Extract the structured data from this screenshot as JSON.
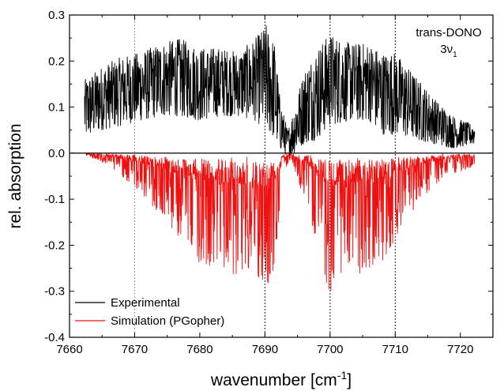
{
  "chart_data": {
    "type": "line",
    "xlabel": "wavenumber [cm",
    "xlabel_sup": "-1",
    "xlabel_end": "]",
    "ylabel": "rel. absorption",
    "xlim": [
      7660,
      7725
    ],
    "ylim": [
      -0.4,
      0.3
    ],
    "xticks": [
      7660,
      7670,
      7680,
      7690,
      7700,
      7710,
      7720
    ],
    "yticks": [
      -0.4,
      -0.3,
      -0.2,
      -0.1,
      0.0,
      0.1,
      0.2,
      0.3
    ],
    "ytick_labels": [
      "-0.4",
      "-0.3",
      "-0.2",
      "-0.1",
      "0.0",
      "0.1",
      "0.2",
      "0.3"
    ],
    "reference_lines_x": [
      7670,
      7690,
      7700,
      7710
    ],
    "zero_line": 0.0,
    "annotation": {
      "line1": "trans-DONO",
      "line2_main": "3ν",
      "line2_sub": "1"
    },
    "legend_position": "bottom-left",
    "series": [
      {
        "name": "Experimental",
        "color": "#000000",
        "x_range": [
          7662.3,
          7722.2
        ],
        "envelope": [
          [
            7662.3,
            0.03,
            0.16
          ],
          [
            7665,
            0.05,
            0.19
          ],
          [
            7668,
            0.06,
            0.21
          ],
          [
            7671,
            0.07,
            0.22
          ],
          [
            7674,
            0.08,
            0.24
          ],
          [
            7677,
            0.08,
            0.25
          ],
          [
            7680,
            0.07,
            0.23
          ],
          [
            7683,
            0.08,
            0.23
          ],
          [
            7686,
            0.08,
            0.22
          ],
          [
            7688.5,
            0.07,
            0.25
          ],
          [
            7690.2,
            0.05,
            0.28
          ],
          [
            7691.5,
            0.03,
            0.24
          ],
          [
            7692.3,
            0.01,
            0.12
          ],
          [
            7693.5,
            -0.01,
            0.05
          ],
          [
            7694.5,
            0.0,
            0.1
          ],
          [
            7696,
            0.02,
            0.18
          ],
          [
            7698,
            0.03,
            0.23
          ],
          [
            7700,
            0.06,
            0.26
          ],
          [
            7703,
            0.07,
            0.24
          ],
          [
            7706,
            0.07,
            0.24
          ],
          [
            7708,
            0.04,
            0.22
          ],
          [
            7710,
            0.04,
            0.22
          ],
          [
            7713,
            0.03,
            0.17
          ],
          [
            7716,
            0.02,
            0.12
          ],
          [
            7719,
            0.01,
            0.08
          ],
          [
            7722.2,
            0.02,
            0.06
          ]
        ]
      },
      {
        "name": "Simulation (PGopher)",
        "color": "#ee1111",
        "x_range": [
          7662.5,
          7722.2
        ],
        "envelope": [
          [
            7662.5,
            -0.005,
            0.0
          ],
          [
            7665,
            -0.02,
            0.0
          ],
          [
            7668,
            -0.05,
            0.0
          ],
          [
            7671,
            -0.09,
            0.0
          ],
          [
            7674,
            -0.14,
            0.0
          ],
          [
            7677,
            -0.19,
            0.0
          ],
          [
            7680,
            -0.24,
            0.0
          ],
          [
            7683,
            -0.25,
            0.0
          ],
          [
            7686,
            -0.27,
            0.0
          ],
          [
            7688.5,
            -0.28,
            0.0
          ],
          [
            7690.2,
            -0.3,
            0.0
          ],
          [
            7691.8,
            -0.24,
            0.0
          ],
          [
            7692.6,
            -0.05,
            0.0
          ],
          [
            7694,
            -0.01,
            0.0
          ],
          [
            7695.5,
            -0.08,
            0.0
          ],
          [
            7697.5,
            -0.17,
            0.0
          ],
          [
            7700,
            -0.32,
            0.0
          ],
          [
            7702,
            -0.25,
            0.0
          ],
          [
            7705,
            -0.27,
            0.0
          ],
          [
            7708,
            -0.24,
            0.0
          ],
          [
            7711,
            -0.16,
            0.0
          ],
          [
            7714,
            -0.1,
            0.0
          ],
          [
            7717,
            -0.06,
            0.0
          ],
          [
            7720,
            -0.04,
            0.0
          ],
          [
            7722.2,
            -0.03,
            0.0
          ]
        ]
      }
    ]
  }
}
